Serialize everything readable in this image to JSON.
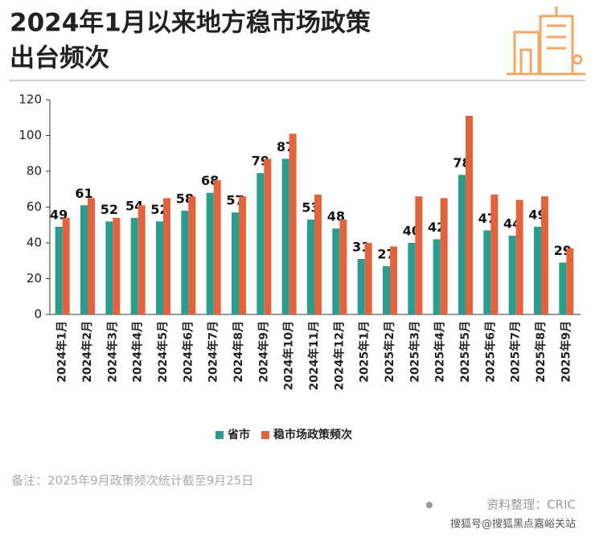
{
  "chart_data": {
    "type": "bar",
    "title_lines": [
      "2024年1月以来地方稳市场政策",
      "出台频次"
    ],
    "categories": [
      "2024年1月",
      "2024年2月",
      "2024年3月",
      "2024年4月",
      "2024年5月",
      "2024年6月",
      "2024年7月",
      "2024年8月",
      "2024年9月",
      "2024年10月",
      "2024年11月",
      "2024年12月",
      "2025年1月",
      "2025年2月",
      "2025年3月",
      "2025年4月",
      "2025年5月",
      "2025年6月",
      "2025年7月",
      "2025年8月",
      "2025年9月"
    ],
    "series": [
      {
        "name": "省市",
        "color": "#2a9d8f",
        "show_labels": true,
        "values": [
          49,
          61,
          52,
          54,
          52,
          58,
          68,
          57,
          79,
          87,
          53,
          48,
          31,
          27,
          40,
          42,
          78,
          47,
          44,
          49,
          29
        ]
      },
      {
        "name": "稳市场政策频次",
        "color": "#e4633f",
        "show_labels": false,
        "values": [
          54,
          65,
          54,
          61,
          65,
          66,
          75,
          66,
          87,
          101,
          67,
          53,
          40,
          38,
          66,
          65,
          111,
          67,
          64,
          66,
          37
        ]
      }
    ],
    "ylim": [
      0,
      120
    ],
    "yticks": [
      0,
      20,
      40,
      60,
      80,
      100,
      120
    ],
    "grid": false,
    "legend": "bottom",
    "note": "备注：2025年9月政策频次统计截至9月25日",
    "source": "资料整理：CRIC",
    "watermark": "搜狐号@搜狐黑点嘉峪关站"
  }
}
